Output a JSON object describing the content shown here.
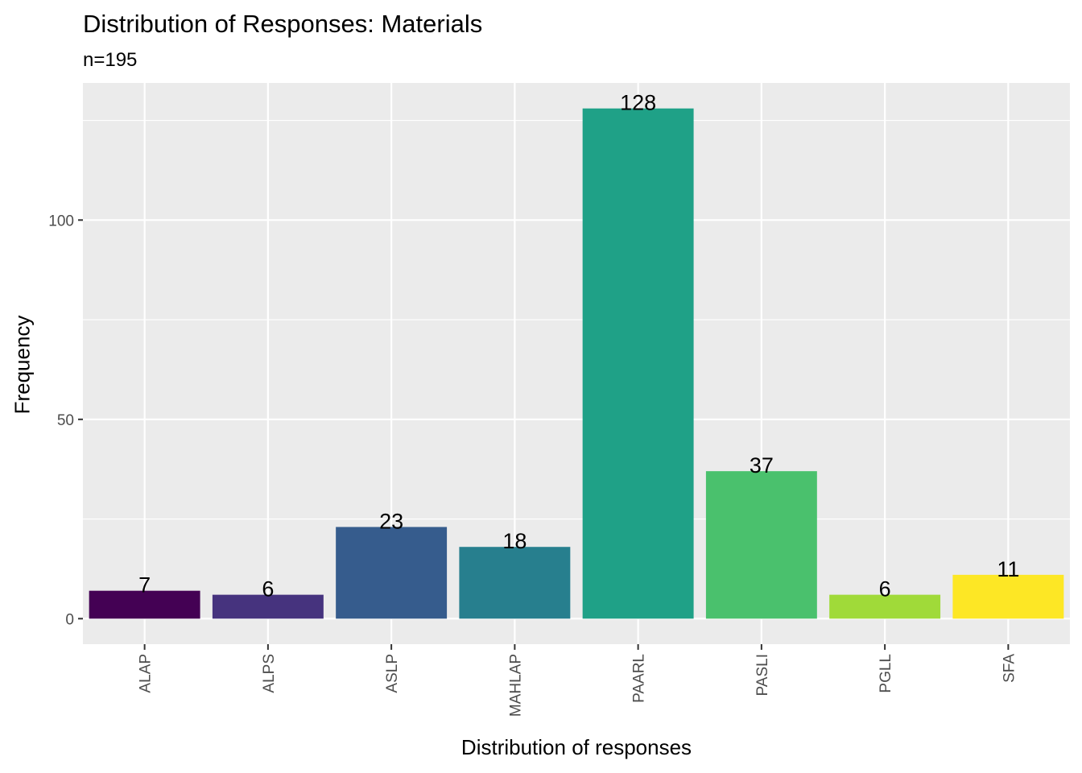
{
  "chart_data": {
    "type": "bar",
    "title": "Distribution of Responses: Materials",
    "subtitle": "n=195",
    "xlabel": "Distribution of responses",
    "ylabel": "Frequency",
    "categories": [
      "ALAP",
      "ALPS",
      "ASLP",
      "MAHLAP",
      "PAARL",
      "PASLI",
      "PGLL",
      "SFA"
    ],
    "values": [
      7,
      6,
      23,
      18,
      128,
      37,
      6,
      11
    ],
    "colors": [
      "#440154",
      "#46337e",
      "#365c8d",
      "#277f8e",
      "#1fa187",
      "#4ac16d",
      "#a0da39",
      "#fde725"
    ],
    "ylim": [
      -6.4,
      134.4
    ],
    "yticks": [
      0,
      50,
      100
    ],
    "grid": true,
    "legend": "none",
    "panel_background": "#ebebeb"
  }
}
